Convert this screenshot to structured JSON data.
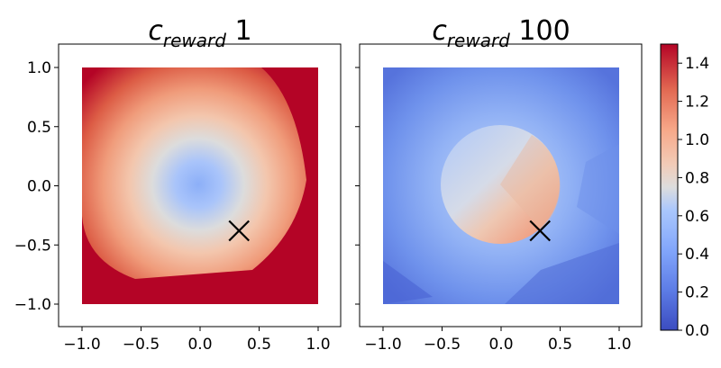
{
  "chart_data": [
    {
      "type": "heatmap",
      "title_base": "c",
      "title_sub": "reward",
      "title_suffix": " 1",
      "xlim": [
        -1.2,
        1.2
      ],
      "ylim": [
        -1.2,
        1.2
      ],
      "x_ticks": [
        -1.0,
        -0.5,
        0.0,
        0.5,
        1.0
      ],
      "y_ticks": [
        -1.0,
        -0.5,
        0.0,
        0.5,
        1.0
      ],
      "x_tick_labels": [
        "−1.0",
        "−0.5",
        "0.0",
        "0.5",
        "1.0"
      ],
      "y_tick_labels": [
        "−1.0",
        "−0.5",
        "0.0",
        "0.5",
        "1.0"
      ],
      "value_field": "radial distance from origin (min ≈ 0.0 at center, saturates at 1.5)",
      "extent": [
        -1.0,
        1.0,
        -1.0,
        1.0
      ],
      "marker": {
        "symbol": "x",
        "x": 0.33,
        "y": -0.38
      }
    },
    {
      "type": "heatmap",
      "title_base": "c",
      "title_sub": "reward",
      "title_suffix": " 100",
      "xlim": [
        -1.2,
        1.2
      ],
      "ylim": [
        -1.2,
        1.2
      ],
      "x_ticks": [
        -1.0,
        -0.5,
        0.0,
        0.5,
        1.0
      ],
      "y_ticks": [],
      "x_tick_labels": [
        "−1.0",
        "−0.5",
        "0.0",
        "0.5",
        "1.0"
      ],
      "value_field": "disk of radius ≈0.5 centered (0,0) with values 0.55–1.05 (higher toward marker); outside ≈0.25–0.4",
      "disk_center": [
        0.0,
        0.0
      ],
      "disk_radius": 0.5,
      "extent": [
        -1.0,
        1.0,
        -1.0,
        1.0
      ],
      "marker": {
        "symbol": "x",
        "x": 0.33,
        "y": -0.38
      }
    }
  ],
  "colorbar": {
    "range": [
      0.0,
      1.5
    ],
    "ticks": [
      0.0,
      0.2,
      0.4,
      0.6,
      0.8,
      1.0,
      1.2,
      1.4
    ],
    "tick_labels": [
      "0.0",
      "0.2",
      "0.4",
      "0.6",
      "0.8",
      "1.0",
      "1.2",
      "1.4"
    ],
    "colormap": "coolwarm",
    "colors": {
      "low": "#3b4cc0",
      "mid": "#dddddd",
      "high": "#b40426"
    }
  }
}
